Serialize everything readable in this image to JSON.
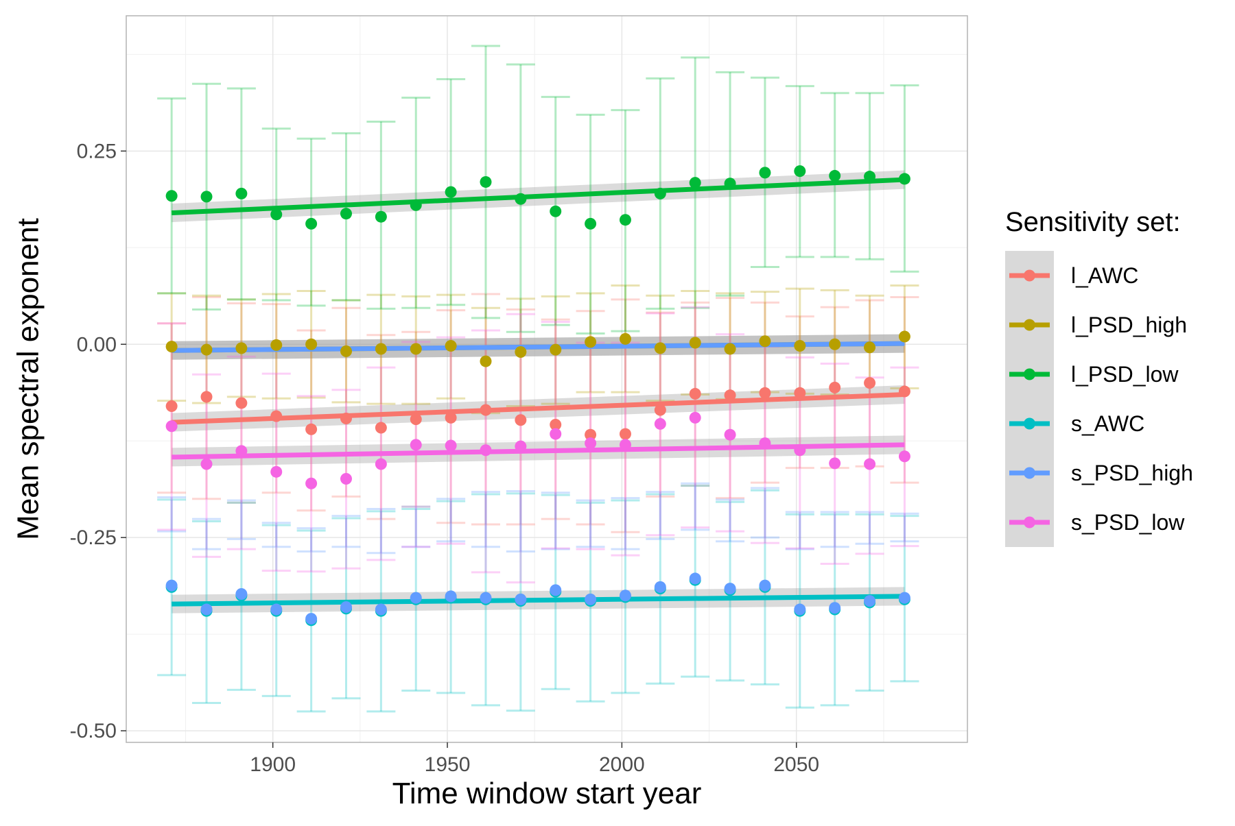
{
  "chart_data": {
    "type": "scatter",
    "title": "",
    "xlabel": "Time window start year",
    "ylabel": "Mean spectral exponent",
    "xlim": [
      1858,
      2099
    ],
    "ylim": [
      -0.515,
      0.425
    ],
    "x_ticks": [
      1900,
      1950,
      2000,
      2050
    ],
    "x_tick_labels": [
      "1900",
      "1950",
      "2000",
      "2050"
    ],
    "y_ticks": [
      -0.5,
      -0.25,
      0,
      0.25
    ],
    "y_tick_labels": [
      "-0.50",
      "-0.25",
      "0.00",
      "0.25"
    ],
    "grid": true,
    "legend_position": "right",
    "legend_title": "Sensitivity set:",
    "x": [
      1871,
      1881,
      1891,
      1901,
      1911,
      1921,
      1931,
      1941,
      1951,
      1961,
      1971,
      1981,
      1991,
      2001,
      2011,
      2021,
      2031,
      2041,
      2051,
      2061,
      2071,
      2081
    ],
    "series": [
      {
        "name": "l_AWC",
        "color": "#F8766D",
        "values": [
          -0.08,
          -0.068,
          -0.076,
          -0.093,
          -0.11,
          -0.096,
          -0.108,
          -0.097,
          -0.095,
          -0.085,
          -0.098,
          -0.104,
          -0.117,
          -0.116,
          -0.085,
          -0.064,
          -0.066,
          -0.063,
          -0.063,
          -0.056,
          -0.05,
          -0.061
        ],
        "err_low": [
          -0.192,
          -0.2,
          -0.205,
          -0.192,
          -0.215,
          -0.197,
          -0.226,
          -0.21,
          -0.231,
          -0.233,
          -0.233,
          -0.226,
          -0.233,
          -0.243,
          -0.197,
          -0.183,
          -0.199,
          -0.179,
          -0.16,
          -0.16,
          -0.158,
          -0.179
        ],
        "err_high": [
          0.027,
          0.061,
          0.053,
          0.052,
          0.018,
          0.047,
          0.012,
          0.016,
          0.044,
          0.065,
          0.045,
          0.032,
          0.043,
          0.058,
          0.041,
          0.054,
          0.06,
          0.054,
          0.036,
          0.048,
          0.057,
          0.061
        ],
        "trend": [
          -0.101,
          -0.065
        ]
      },
      {
        "name": "l_PSD_high",
        "color": "#B79F00",
        "values": [
          -0.003,
          -0.007,
          -0.005,
          -0.001,
          0.0,
          -0.009,
          -0.006,
          -0.006,
          -0.002,
          -0.022,
          -0.01,
          -0.007,
          0.003,
          0.007,
          -0.005,
          0.002,
          -0.006,
          0.004,
          -0.002,
          0.0,
          -0.004,
          0.01
        ],
        "err_low": [
          -0.073,
          -0.076,
          -0.068,
          -0.07,
          -0.069,
          -0.075,
          -0.077,
          -0.077,
          -0.07,
          -0.089,
          -0.08,
          -0.077,
          -0.062,
          -0.062,
          -0.073,
          -0.065,
          -0.071,
          -0.062,
          -0.064,
          -0.065,
          -0.066,
          -0.057
        ],
        "err_high": [
          0.066,
          0.063,
          0.058,
          0.065,
          0.069,
          0.057,
          0.064,
          0.062,
          0.064,
          0.047,
          0.059,
          0.062,
          0.066,
          0.076,
          0.063,
          0.069,
          0.066,
          0.068,
          0.072,
          0.07,
          0.063,
          0.076
        ],
        "trend": [
          -0.008,
          0.001
        ]
      },
      {
        "name": "l_PSD_low",
        "color": "#00BA38",
        "values": [
          0.192,
          0.191,
          0.195,
          0.168,
          0.156,
          0.169,
          0.165,
          0.18,
          0.197,
          0.21,
          0.188,
          0.172,
          0.156,
          0.161,
          0.195,
          0.209,
          0.208,
          0.222,
          0.224,
          0.218,
          0.217,
          0.214
        ],
        "err_low": [
          0.066,
          0.045,
          0.058,
          0.057,
          0.05,
          0.057,
          0.046,
          0.047,
          0.051,
          0.034,
          0.016,
          0.025,
          0.014,
          0.017,
          0.046,
          0.047,
          0.063,
          0.1,
          0.113,
          0.113,
          0.11,
          0.094
        ],
        "err_high": [
          0.318,
          0.337,
          0.331,
          0.279,
          0.266,
          0.273,
          0.288,
          0.319,
          0.343,
          0.386,
          0.362,
          0.32,
          0.297,
          0.303,
          0.344,
          0.371,
          0.352,
          0.345,
          0.334,
          0.325,
          0.325,
          0.335
        ],
        "trend": [
          0.17,
          0.213
        ]
      },
      {
        "name": "s_AWC",
        "color": "#00BFC4",
        "values": [
          -0.314,
          -0.345,
          -0.325,
          -0.345,
          -0.357,
          -0.342,
          -0.345,
          -0.33,
          -0.328,
          -0.33,
          -0.332,
          -0.32,
          -0.332,
          -0.327,
          -0.316,
          -0.305,
          -0.318,
          -0.314,
          -0.345,
          -0.343,
          -0.334,
          -0.33
        ],
        "err_low": [
          -0.428,
          -0.464,
          -0.447,
          -0.455,
          -0.475,
          -0.458,
          -0.475,
          -0.448,
          -0.451,
          -0.467,
          -0.474,
          -0.446,
          -0.462,
          -0.451,
          -0.439,
          -0.43,
          -0.435,
          -0.44,
          -0.47,
          -0.467,
          -0.448,
          -0.436
        ],
        "err_high": [
          -0.201,
          -0.229,
          -0.205,
          -0.234,
          -0.241,
          -0.225,
          -0.216,
          -0.213,
          -0.203,
          -0.194,
          -0.193,
          -0.195,
          -0.205,
          -0.202,
          -0.194,
          -0.183,
          -0.204,
          -0.189,
          -0.22,
          -0.22,
          -0.22,
          -0.222
        ],
        "trend": [
          -0.336,
          -0.326
        ]
      },
      {
        "name": "s_PSD_high",
        "color": "#619CFF",
        "values": [
          -0.312,
          -0.343,
          -0.323,
          -0.343,
          -0.355,
          -0.34,
          -0.343,
          -0.328,
          -0.326,
          -0.328,
          -0.33,
          -0.318,
          -0.33,
          -0.325,
          -0.314,
          -0.303,
          -0.316,
          -0.312,
          -0.343,
          -0.341,
          -0.332,
          -0.328
        ],
        "err_low": [
          -0.242,
          -0.265,
          -0.252,
          -0.262,
          -0.268,
          -0.262,
          -0.27,
          -0.262,
          -0.255,
          -0.262,
          -0.268,
          -0.265,
          -0.262,
          -0.265,
          -0.252,
          -0.24,
          -0.255,
          -0.25,
          -0.265,
          -0.262,
          -0.258,
          -0.255
        ],
        "err_high": [
          -0.198,
          -0.226,
          -0.202,
          -0.231,
          -0.238,
          -0.222,
          -0.213,
          -0.21,
          -0.2,
          -0.191,
          -0.19,
          -0.192,
          -0.202,
          -0.199,
          -0.191,
          -0.18,
          -0.201,
          -0.186,
          -0.217,
          -0.217,
          -0.217,
          -0.219
        ],
        "trend": [
          -0.008,
          0.001
        ]
      },
      {
        "name": "s_PSD_low",
        "color": "#F564E3",
        "values": [
          -0.106,
          -0.155,
          -0.138,
          -0.165,
          -0.18,
          -0.174,
          -0.155,
          -0.13,
          -0.131,
          -0.137,
          -0.132,
          -0.116,
          -0.128,
          -0.13,
          -0.103,
          -0.095,
          -0.117,
          -0.128,
          -0.137,
          -0.154,
          -0.155,
          -0.145
        ],
        "err_low": [
          -0.24,
          -0.275,
          -0.265,
          -0.293,
          -0.294,
          -0.29,
          -0.279,
          -0.262,
          -0.258,
          -0.295,
          -0.308,
          -0.264,
          -0.265,
          -0.273,
          -0.247,
          -0.237,
          -0.242,
          -0.257,
          -0.264,
          -0.284,
          -0.271,
          -0.261
        ],
        "err_high": [
          0.027,
          -0.039,
          -0.016,
          -0.038,
          -0.067,
          -0.059,
          -0.03,
          0.003,
          0.009,
          0.018,
          0.039,
          0.029,
          0.002,
          0.002,
          0.04,
          0.048,
          0.013,
          -0.003,
          -0.017,
          -0.025,
          -0.043,
          -0.03
        ],
        "trend": [
          -0.146,
          -0.13
        ]
      }
    ]
  }
}
